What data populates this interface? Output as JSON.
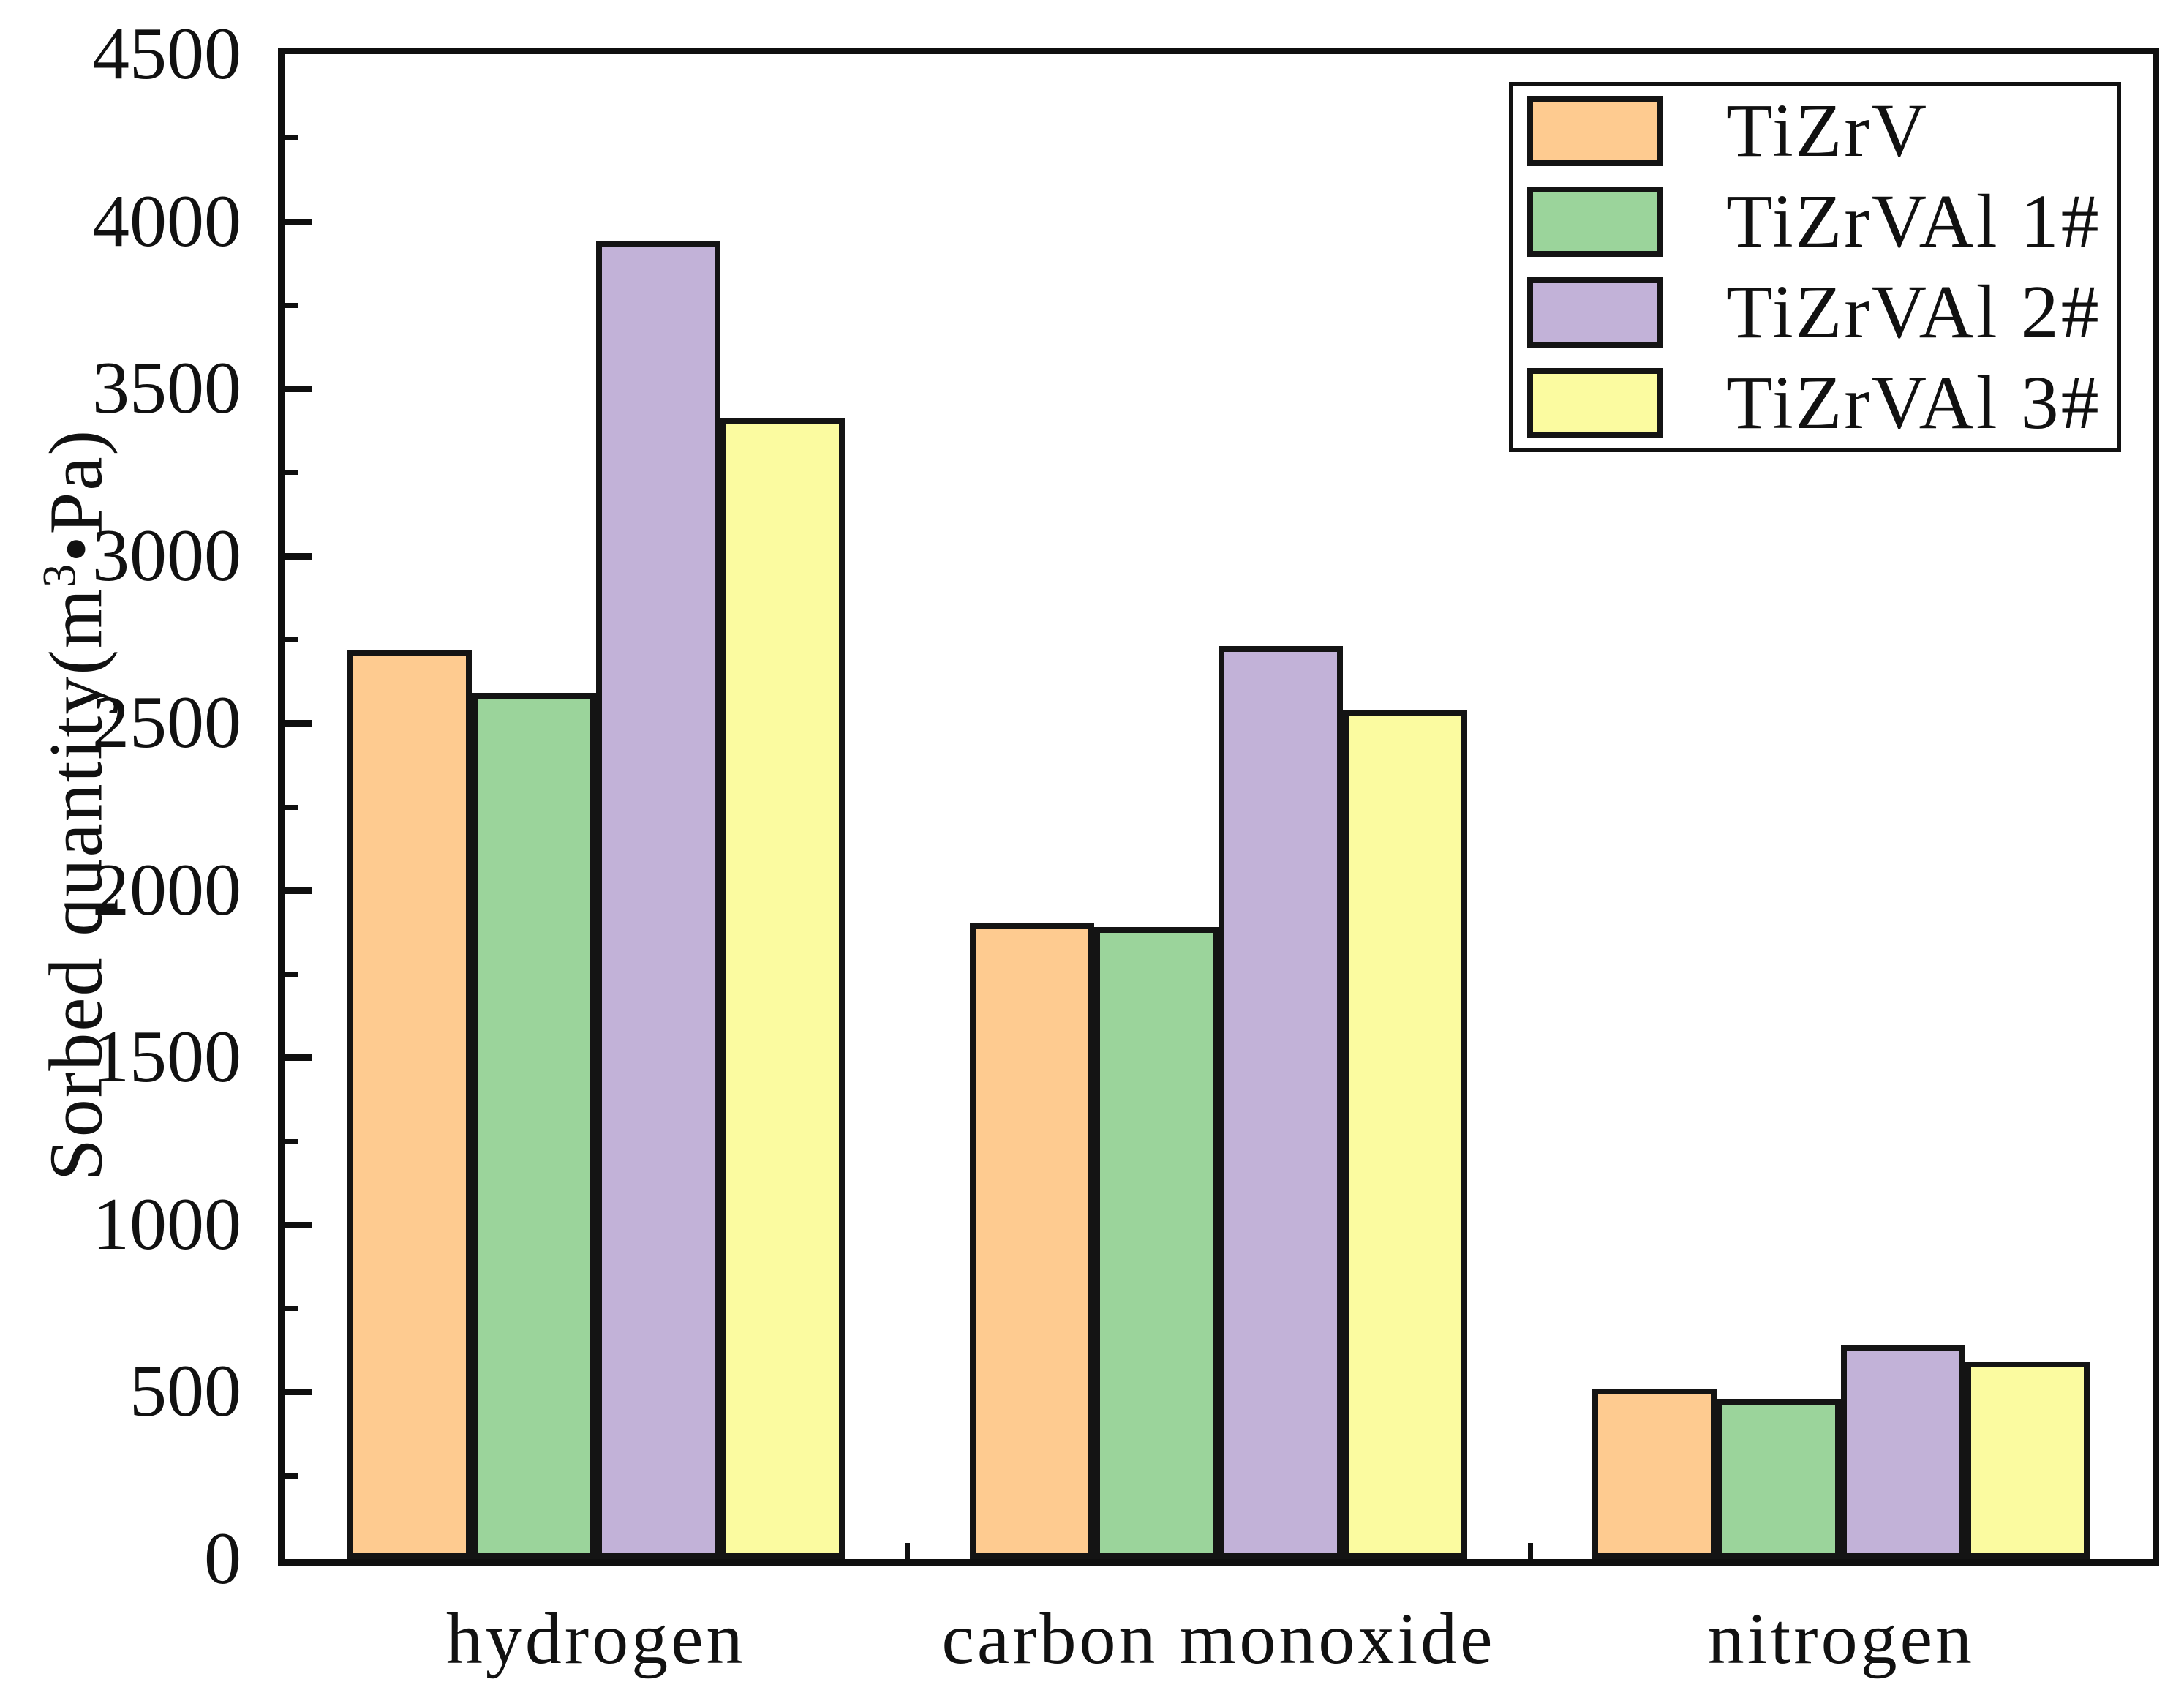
{
  "chart_data": {
    "type": "bar",
    "title": "",
    "categories": [
      "hydrogen",
      "carbon monoxide",
      "nitrogen"
    ],
    "series": [
      {
        "name": "TiZrV",
        "color": "#fecb90",
        "values": [
          2720,
          1900,
          510
        ]
      },
      {
        "name": "TiZrVAl 1#",
        "color": "#9bd49b",
        "values": [
          2590,
          1890,
          480
        ]
      },
      {
        "name": "TiZrVAl 2#",
        "color": "#c2b2d8",
        "values": [
          3940,
          2730,
          640
        ]
      },
      {
        "name": "TiZrVAl 3#",
        "color": "#fbfba0",
        "values": [
          3410,
          2540,
          590
        ]
      }
    ],
    "xlabel": "",
    "ylabel": "Sorbed quantity(m³•Pa)",
    "ylabel_parts": {
      "pre": "Sorbed quantity(m",
      "sup": "3",
      "post": "•Pa)"
    },
    "ylim": [
      0,
      4500
    ],
    "ytick_step": 500,
    "yminor_step": 250,
    "ytick_labels": [
      "0",
      "500",
      "1000",
      "1500",
      "2000",
      "2500",
      "3000",
      "3500",
      "4000",
      "4500"
    ],
    "grid": false,
    "legend_position": "top-right",
    "bar_outline_color": "#141414",
    "axis_color": "#0f0f0f"
  }
}
